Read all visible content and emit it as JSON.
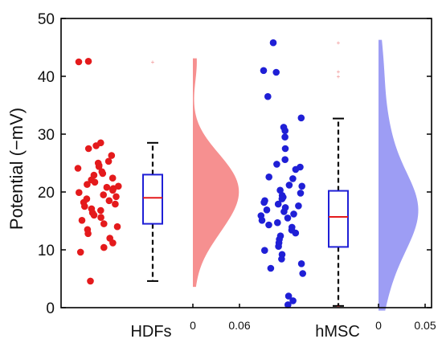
{
  "chart_data": {
    "type": "scatter",
    "subtype": "raincloud",
    "title": "",
    "ylabel": "Potential (−mV)",
    "ylim": [
      0,
      50
    ],
    "yticks": [
      0,
      10,
      20,
      30,
      40,
      50
    ],
    "grid": false,
    "groups": [
      {
        "name": "HDFs",
        "color": "#e41a1c",
        "density_color": "#f47c7c",
        "points": [
          42.5,
          42.6,
          28.5,
          28.0,
          27.5,
          26.3,
          25.3,
          25.0,
          24.6,
          24.4,
          24.1,
          23.5,
          23.2,
          22.9,
          22.4,
          22.1,
          21.7,
          21.3,
          21.0,
          20.8,
          20.6,
          20.3,
          19.9,
          19.5,
          19.2,
          18.8,
          18.5,
          18.2,
          17.9,
          17.5,
          17.1,
          16.8,
          16.4,
          16.0,
          15.6,
          15.1,
          14.5,
          14.0,
          13.5,
          12.8,
          12.0,
          11.2,
          10.4,
          9.6,
          4.6
        ],
        "box": {
          "q1": 14.5,
          "median": 19.0,
          "q3": 23.0,
          "whisker_low": 4.6,
          "whisker_high": 28.5
        },
        "outliers": [
          42.5
        ],
        "density_axis_ticks": [
          "0",
          "0.06"
        ],
        "density_max": 0.06
      },
      {
        "name": "hMSC",
        "color": "#1f1fd6",
        "density_color": "#8c8cf2",
        "points": [
          45.8,
          41.0,
          40.7,
          36.5,
          32.8,
          31.2,
          30.6,
          29.5,
          27.5,
          25.6,
          24.8,
          24.3,
          23.9,
          22.6,
          22.3,
          21.2,
          21.0,
          20.3,
          19.8,
          19.4,
          19.1,
          18.8,
          18.5,
          18.2,
          17.9,
          17.6,
          17.3,
          16.9,
          16.6,
          16.2,
          15.9,
          15.5,
          15.1,
          14.7,
          14.3,
          13.9,
          13.4,
          12.9,
          12.4,
          11.8,
          11.2,
          10.6,
          9.9,
          9.2,
          8.4,
          7.6,
          6.8,
          5.9,
          2.0,
          1.2,
          0.5
        ],
        "box": {
          "q1": 10.5,
          "median": 15.7,
          "q3": 20.2,
          "whisker_low": 0.3,
          "whisker_high": 32.7
        },
        "outliers": [
          45.8,
          40.8,
          40.0,
          0.3
        ],
        "density_axis_ticks": [
          "0",
          "0.05"
        ],
        "density_max": 0.05
      }
    ]
  }
}
